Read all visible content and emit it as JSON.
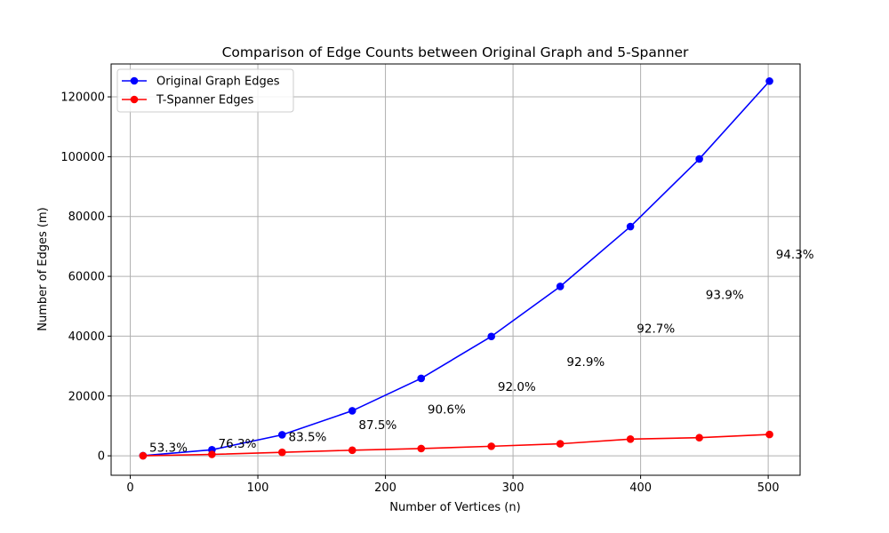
{
  "chart_data": {
    "type": "line",
    "title": "Comparison of Edge Counts between Original Graph and 5-Spanner",
    "xlabel": "Number of Vertices (n)",
    "ylabel": "Number of Edges (m)",
    "xlim": [
      -15,
      525
    ],
    "ylim": [
      -6500,
      131000
    ],
    "xticks": [
      0,
      100,
      200,
      300,
      400,
      500
    ],
    "yticks": [
      0,
      20000,
      40000,
      60000,
      80000,
      100000,
      120000
    ],
    "grid": true,
    "legend_position": "upper left",
    "x": [
      10,
      64,
      119,
      174,
      228,
      283,
      337,
      392,
      446,
      501
    ],
    "series": [
      {
        "name": "Original Graph Edges",
        "color": "#0000ff",
        "marker": "circle",
        "values": [
          45,
          2016,
          7021,
          15051,
          25878,
          39903,
          56616,
          76636,
          99235,
          125250
        ]
      },
      {
        "name": "T-Spanner Edges",
        "color": "#ff0000",
        "marker": "circle",
        "values": [
          21,
          478,
          1158,
          1882,
          2433,
          3192,
          4020,
          5595,
          6053,
          7141
        ]
      }
    ],
    "annotations": [
      {
        "text": "53.3%",
        "x": 15,
        "y": 1400
      },
      {
        "text": "76.3%",
        "x": 69,
        "y": 2700
      },
      {
        "text": "83.5%",
        "x": 124,
        "y": 5000
      },
      {
        "text": "87.5%",
        "x": 179,
        "y": 9000
      },
      {
        "text": "90.6%",
        "x": 233,
        "y": 14100
      },
      {
        "text": "92.0%",
        "x": 288,
        "y": 21700
      },
      {
        "text": "92.9%",
        "x": 342,
        "y": 30000
      },
      {
        "text": "92.7%",
        "x": 397,
        "y": 41200
      },
      {
        "text": "93.9%",
        "x": 451,
        "y": 52500
      },
      {
        "text": "94.3%",
        "x": 506,
        "y": 66000
      }
    ]
  }
}
